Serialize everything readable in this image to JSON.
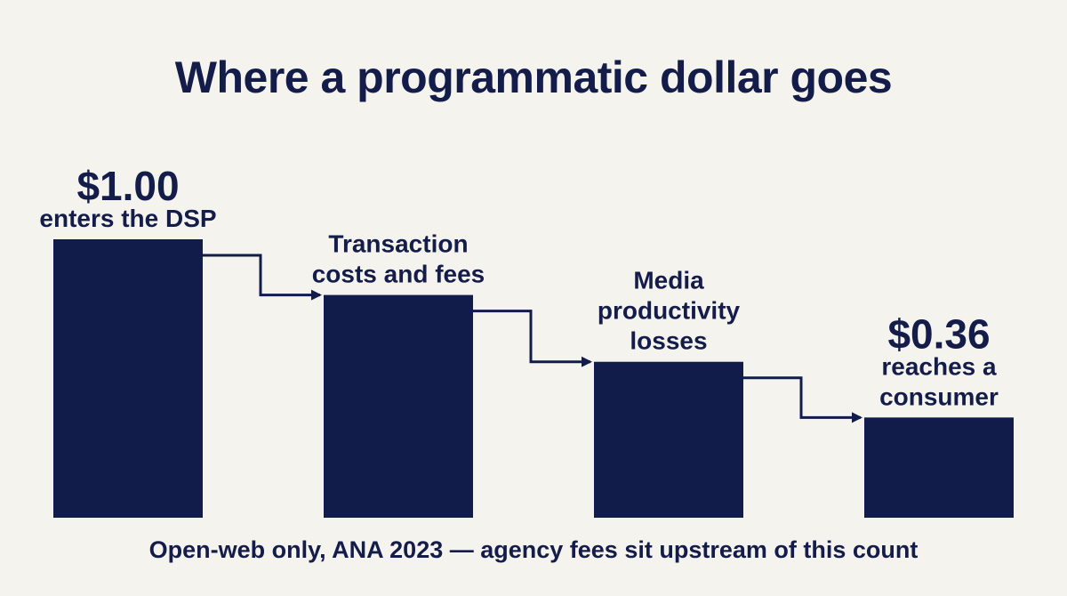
{
  "title": "Where a programmatic dollar goes",
  "footnote": "Open-web only, ANA 2023 — agency fees sit upstream of this count",
  "colors": {
    "bar": "#111c4a",
    "background": "#f5f3ee",
    "text": "#141d4a"
  },
  "chart_data": {
    "type": "bar",
    "subtype": "waterfall-steps",
    "categories": [
      "$1.00 enters the DSP",
      "Transaction costs and fees",
      "Media productivity losses",
      "$0.36 reaches a consumer"
    ],
    "values": [
      1.0,
      0.8,
      0.56,
      0.36
    ],
    "labels": [
      {
        "value_text": "$1.00",
        "lines": [
          "enters the DSP"
        ]
      },
      {
        "value_text": "",
        "lines": [
          "Transaction",
          "costs and fees"
        ]
      },
      {
        "value_text": "",
        "lines": [
          "Media",
          "productivity",
          "losses"
        ]
      },
      {
        "value_text": "$0.36",
        "lines": [
          "reaches a",
          "consumer"
        ]
      }
    ],
    "ylim": [
      0,
      1.0
    ],
    "grid": false,
    "connectors": "stepped arrows between consecutive bars"
  }
}
